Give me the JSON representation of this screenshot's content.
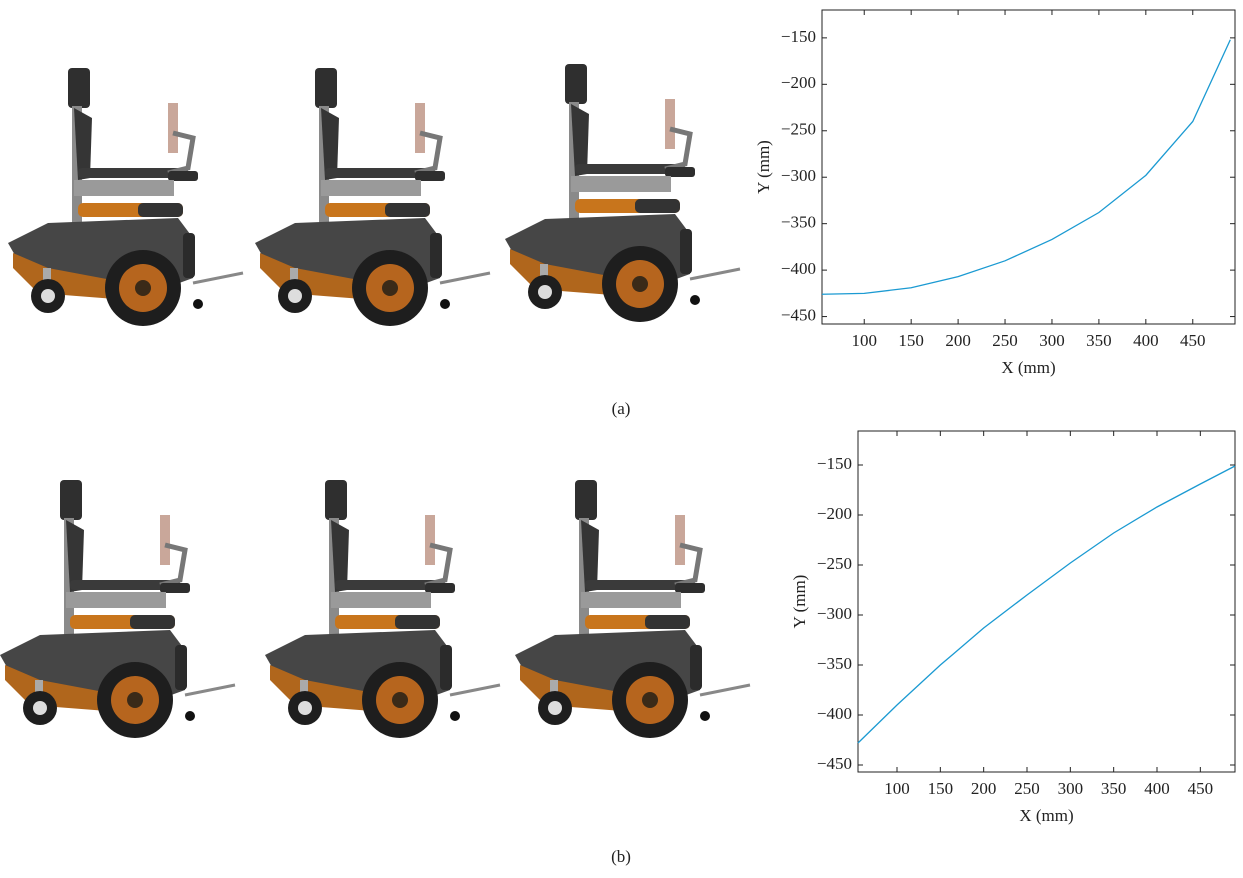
{
  "panels": [
    {
      "label": "(a)"
    },
    {
      "label": "(b)"
    }
  ],
  "chart_data": [
    {
      "type": "line",
      "xlabel": "X (mm)",
      "ylabel": "Y (mm)",
      "xlim": [
        55,
        495
      ],
      "ylim": [
        -458,
        -120
      ],
      "xticks": [
        100,
        150,
        200,
        250,
        300,
        350,
        400,
        450
      ],
      "yticks": [
        {
          "value": -450,
          "label": "−450"
        },
        {
          "value": -400,
          "label": "−400"
        },
        {
          "value": -350,
          "label": "−350"
        },
        {
          "value": -300,
          "label": "−300"
        },
        {
          "value": -250,
          "label": "−250"
        },
        {
          "value": -200,
          "label": "−200"
        },
        {
          "value": -150,
          "label": "−150"
        }
      ],
      "series": [
        {
          "color": "#1b9ad2",
          "x": [
            55,
            100,
            150,
            200,
            250,
            300,
            350,
            400,
            450,
            490
          ],
          "values": [
            -426,
            -425,
            -419,
            -407,
            -390,
            -367,
            -338,
            -298,
            -240,
            -152
          ]
        }
      ]
    },
    {
      "type": "line",
      "xlabel": "X (mm)",
      "ylabel": "Y (mm)",
      "xlim": [
        55,
        490
      ],
      "ylim": [
        -457,
        -116
      ],
      "xticks": [
        100,
        150,
        200,
        250,
        300,
        350,
        400,
        450
      ],
      "yticks": [
        {
          "value": -450,
          "label": "−450"
        },
        {
          "value": -400,
          "label": "−400"
        },
        {
          "value": -350,
          "label": "−350"
        },
        {
          "value": -300,
          "label": "−300"
        },
        {
          "value": -250,
          "label": "−250"
        },
        {
          "value": -200,
          "label": "−200"
        },
        {
          "value": -150,
          "label": "−150"
        }
      ],
      "series": [
        {
          "color": "#1b9ad2",
          "x": [
            55,
            100,
            150,
            165,
            200,
            250,
            300,
            350,
            400,
            450,
            490
          ],
          "values": [
            -428,
            -390,
            -350,
            -339,
            -313,
            -280,
            -248,
            -218,
            -192,
            -169,
            -151
          ]
        }
      ]
    }
  ]
}
